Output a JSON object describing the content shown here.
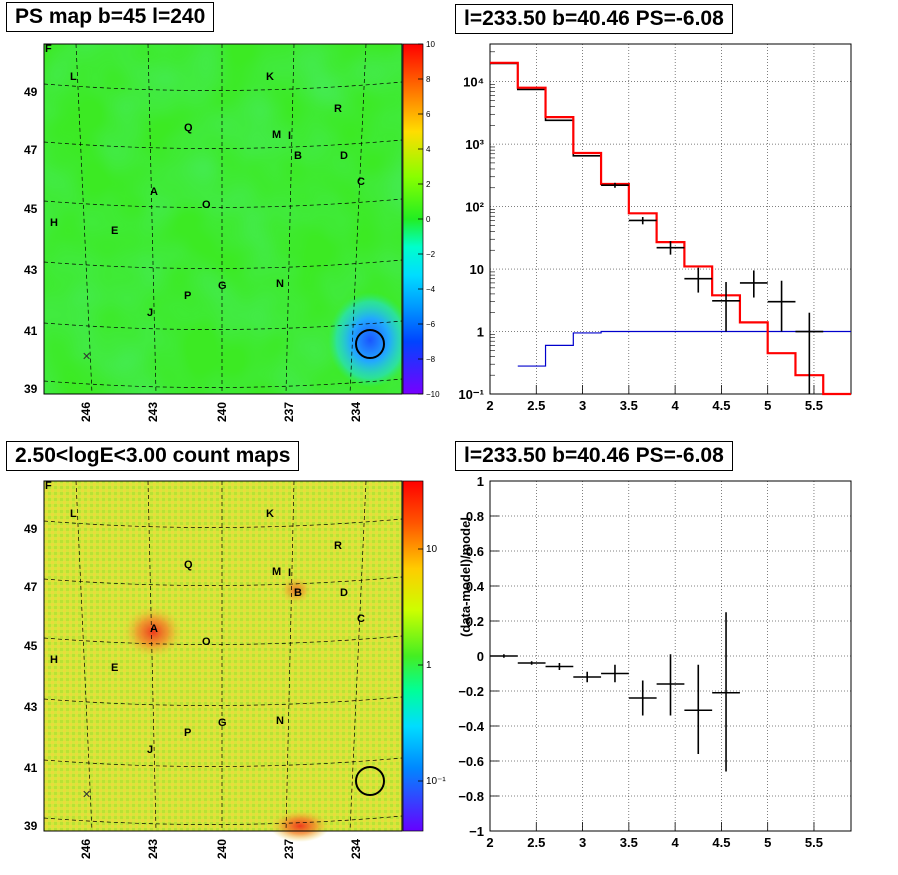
{
  "titles": {
    "map_top": "PS map b=45 l=240",
    "spec_top": "l=233.50 b=40.46 PS=-6.08",
    "map_bottom": "2.50<logE<3.00 count maps",
    "spec_bottom": "l=233.50 b=40.46 PS=-6.08"
  },
  "colors": {
    "model_line": "#ff0000",
    "data_marker": "#000000",
    "secondary_line": "#0000cc",
    "map_green": "#33ee22",
    "map_yellow": "#dde833"
  },
  "map_axes": {
    "y_ticks": [
      "49",
      "47",
      "45",
      "43",
      "41",
      "39"
    ],
    "x_ticks": [
      "246",
      "243",
      "240",
      "237",
      "234"
    ],
    "source_labels": [
      "F",
      "L",
      "K",
      "R",
      "Q",
      "M",
      "I",
      "B",
      "D",
      "C",
      "A",
      "O",
      "H",
      "E",
      "N",
      "G",
      "P",
      "J"
    ]
  },
  "colorbar_top": {
    "ticks": [
      "10",
      "8",
      "6",
      "4",
      "2",
      "0",
      "−2",
      "−4",
      "−6",
      "−8",
      "−10"
    ]
  },
  "colorbar_bottom": {
    "ticks": [
      "10",
      "1",
      "10⁻¹"
    ]
  },
  "chart_data": [
    {
      "type": "line",
      "panel": "top-right",
      "yscale": "log",
      "xlim": [
        2,
        5.9
      ],
      "ylim": [
        0.1,
        40000
      ],
      "y_tick_labels": [
        "10⁻¹",
        "1",
        "10",
        "10²",
        "10³",
        "10⁴"
      ],
      "x_tick_labels": [
        "2",
        "2.5",
        "3",
        "3.5",
        "4",
        "4.5",
        "5",
        "5.5"
      ],
      "grid": true,
      "series": [
        {
          "style": "red-step",
          "bin_edges": [
            2.0,
            2.3,
            2.6,
            2.9,
            3.2,
            3.5,
            3.8,
            4.1,
            4.4,
            4.7,
            5.0,
            5.3,
            5.6,
            5.9
          ],
          "values": [
            20000,
            8000,
            2700,
            720,
            230,
            78,
            27,
            11,
            3.8,
            1.4,
            0.45,
            0.2,
            0.1
          ]
        },
        {
          "style": "black-step",
          "bin_edges": [
            2.0,
            2.3,
            2.6,
            2.9,
            3.2
          ],
          "values": [
            19500,
            7500,
            2400,
            650
          ]
        },
        {
          "style": "blue-step",
          "bin_edges": [
            2.3,
            2.6,
            2.9,
            3.2,
            5.9
          ],
          "values": [
            0.28,
            0.6,
            0.95,
            1.0
          ]
        },
        {
          "style": "black-points-with-errors",
          "points": [
            {
              "x": 3.35,
              "y": 220,
              "xerr": 0.15,
              "ylo": 200,
              "yhi": 240
            },
            {
              "x": 3.65,
              "y": 60,
              "xerr": 0.15,
              "ylo": 52,
              "yhi": 68
            },
            {
              "x": 3.95,
              "y": 22,
              "xerr": 0.15,
              "ylo": 17,
              "yhi": 28
            },
            {
              "x": 4.25,
              "y": 7,
              "xerr": 0.15,
              "ylo": 4.2,
              "yhi": 10.5
            },
            {
              "x": 4.55,
              "y": 3.1,
              "xerr": 0.15,
              "ylo": 1.0,
              "yhi": 6.2
            },
            {
              "x": 4.85,
              "y": 6,
              "xerr": 0.15,
              "ylo": 3.5,
              "yhi": 9.5
            },
            {
              "x": 5.15,
              "y": 3,
              "xerr": 0.15,
              "ylo": 1.0,
              "yhi": 6.5
            },
            {
              "x": 5.45,
              "y": 1.0,
              "xerr": 0.15,
              "ylo": 0.1,
              "yhi": 2.0
            }
          ]
        }
      ]
    },
    {
      "type": "scatter",
      "panel": "bottom-right",
      "ylabel": "(data-model)/model",
      "xlim": [
        2,
        5.9
      ],
      "ylim": [
        -1,
        1
      ],
      "y_tick_labels": [
        "1",
        "0.8",
        "0.6",
        "0.4",
        "0.2",
        "0",
        "−0.2",
        "−0.4",
        "−0.6",
        "−0.8",
        "−1"
      ],
      "x_tick_labels": [
        "2",
        "2.5",
        "3",
        "3.5",
        "4",
        "4.5",
        "5",
        "5.5"
      ],
      "grid": true,
      "points": [
        {
          "x": 2.15,
          "y": 0.0,
          "xerr": 0.15,
          "ylo": -0.01,
          "yhi": 0.01
        },
        {
          "x": 2.45,
          "y": -0.04,
          "xerr": 0.15,
          "ylo": -0.05,
          "yhi": -0.03
        },
        {
          "x": 2.75,
          "y": -0.06,
          "xerr": 0.15,
          "ylo": -0.08,
          "yhi": -0.04
        },
        {
          "x": 3.05,
          "y": -0.12,
          "xerr": 0.15,
          "ylo": -0.15,
          "yhi": -0.09
        },
        {
          "x": 3.35,
          "y": -0.1,
          "xerr": 0.15,
          "ylo": -0.15,
          "yhi": -0.05
        },
        {
          "x": 3.65,
          "y": -0.24,
          "xerr": 0.15,
          "ylo": -0.34,
          "yhi": -0.14
        },
        {
          "x": 3.95,
          "y": -0.16,
          "xerr": 0.15,
          "ylo": -0.34,
          "yhi": 0.01
        },
        {
          "x": 4.25,
          "y": -0.31,
          "xerr": 0.15,
          "ylo": -0.56,
          "yhi": -0.05
        },
        {
          "x": 4.55,
          "y": -0.21,
          "xerr": 0.15,
          "ylo": -0.66,
          "yhi": 0.25
        }
      ]
    }
  ]
}
